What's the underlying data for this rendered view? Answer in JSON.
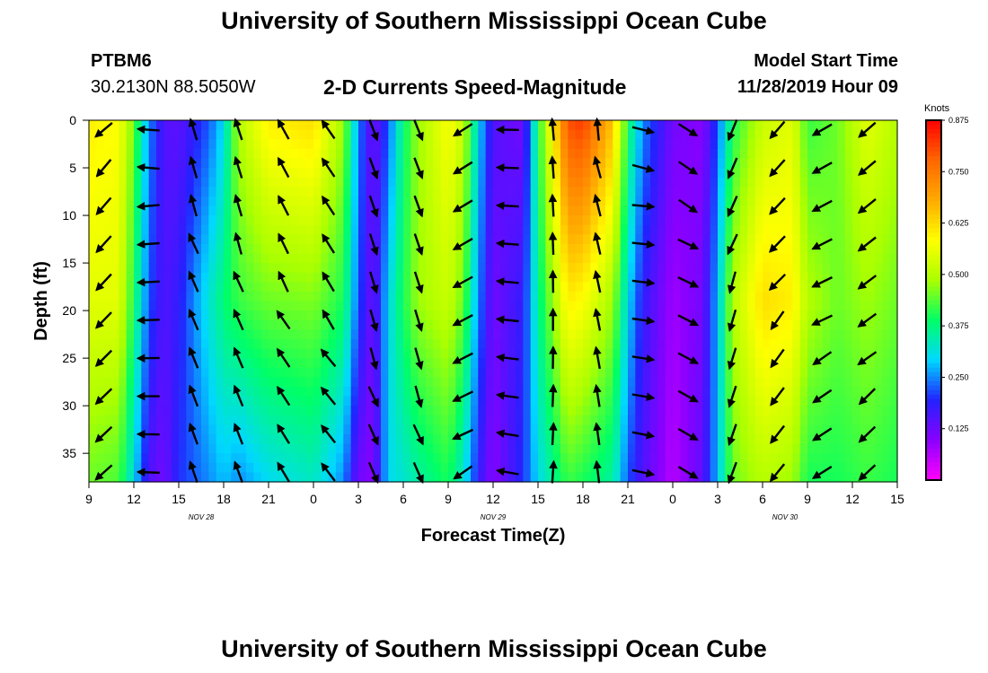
{
  "page": {
    "title_top": "University of Southern Mississippi Ocean Cube",
    "title_bottom": "University of Southern Mississippi Ocean Cube",
    "station": "PTBM6",
    "coordinates": "30.2130N 88.5050W",
    "model_label": "Model Start Time",
    "model_time": "11/28/2019 Hour 09"
  },
  "chart_data": {
    "type": "heatmap",
    "title": "2-D Currents Speed-Magnitude",
    "xlabel": "Forecast Time(Z)",
    "ylabel": "Depth (ft)",
    "x_range_hours": [
      0,
      54
    ],
    "y_range_ft": [
      0,
      38
    ],
    "x_tick_labels": [
      "9",
      "12",
      "15",
      "18",
      "21",
      "0",
      "3",
      "6",
      "9",
      "12",
      "15",
      "18",
      "21",
      "0",
      "3",
      "6",
      "9",
      "12",
      "15"
    ],
    "y_tick_labels": [
      "0",
      "5",
      "10",
      "15",
      "20",
      "25",
      "30",
      "35"
    ],
    "date_labels": [
      {
        "text": "NOV 28",
        "at_hour": 7.5
      },
      {
        "text": "NOV 29",
        "at_hour": 27
      },
      {
        "text": "NOV 30",
        "at_hour": 46.5
      }
    ],
    "colorbar": {
      "unit": "Knots",
      "ticks": [
        "0.875",
        "0.750",
        "0.625",
        "0.500",
        "0.375",
        "0.250",
        "0.125"
      ],
      "range": [
        0.0,
        0.875
      ],
      "colors": [
        "#ff00ff",
        "#8a00ff",
        "#2222ff",
        "#00d8ff",
        "#00ff66",
        "#aaff00",
        "#ffff00",
        "#ffaa00",
        "#ff6600",
        "#ff0000"
      ]
    },
    "columns": [
      {
        "h": 0,
        "top": 0.6,
        "mid": 0.55,
        "bot": 0.45,
        "dir": 225
      },
      {
        "h": 2,
        "top": 0.58,
        "mid": 0.55,
        "bot": 0.43,
        "dir": 225
      },
      {
        "h": 3,
        "top": 0.45,
        "mid": 0.4,
        "bot": 0.3,
        "dir": 260
      },
      {
        "h": 4,
        "top": 0.25,
        "mid": 0.22,
        "bot": 0.15,
        "dir": 270
      },
      {
        "h": 5,
        "top": 0.15,
        "mid": 0.15,
        "bot": 0.12,
        "dir": 290
      },
      {
        "h": 6,
        "top": 0.14,
        "mid": 0.18,
        "bot": 0.2,
        "dir": 340
      },
      {
        "h": 8,
        "top": 0.22,
        "mid": 0.32,
        "bot": 0.25,
        "dir": 0
      },
      {
        "h": 9,
        "top": 0.3,
        "mid": 0.38,
        "bot": 0.28,
        "dir": 355
      },
      {
        "h": 10,
        "top": 0.5,
        "mid": 0.42,
        "bot": 0.25,
        "dir": 340
      },
      {
        "h": 12,
        "top": 0.6,
        "mid": 0.45,
        "bot": 0.3,
        "dir": 330
      },
      {
        "h": 15,
        "top": 0.62,
        "mid": 0.46,
        "bot": 0.33,
        "dir": 325
      },
      {
        "h": 17,
        "top": 0.48,
        "mid": 0.4,
        "bot": 0.25,
        "dir": 0
      },
      {
        "h": 18,
        "top": 0.25,
        "mid": 0.22,
        "bot": 0.12,
        "dir": 10
      },
      {
        "h": 19,
        "top": 0.12,
        "mid": 0.12,
        "bot": 0.1,
        "dir": 160
      },
      {
        "h": 20,
        "top": 0.22,
        "mid": 0.3,
        "bot": 0.3,
        "dir": 170
      },
      {
        "h": 21,
        "top": 0.38,
        "mid": 0.4,
        "bot": 0.32,
        "dir": 150
      },
      {
        "h": 22,
        "top": 0.48,
        "mid": 0.48,
        "bot": 0.35,
        "dir": 160
      },
      {
        "h": 24,
        "top": 0.58,
        "mid": 0.52,
        "bot": 0.4,
        "dir": 210
      },
      {
        "h": 25,
        "top": 0.52,
        "mid": 0.45,
        "bot": 0.32,
        "dir": 240
      },
      {
        "h": 26,
        "top": 0.3,
        "mid": 0.25,
        "bot": 0.18,
        "dir": 265
      },
      {
        "h": 27,
        "top": 0.15,
        "mid": 0.12,
        "bot": 0.1,
        "dir": 275
      },
      {
        "h": 29,
        "top": 0.12,
        "mid": 0.18,
        "bot": 0.2,
        "dir": 0
      },
      {
        "h": 30,
        "top": 0.4,
        "mid": 0.36,
        "bot": 0.3,
        "dir": 0
      },
      {
        "h": 32,
        "top": 0.8,
        "mid": 0.6,
        "bot": 0.42,
        "dir": 340
      },
      {
        "h": 33,
        "top": 0.82,
        "mid": 0.58,
        "bot": 0.4,
        "dir": 350
      },
      {
        "h": 35,
        "top": 0.65,
        "mid": 0.48,
        "bot": 0.35,
        "dir": 10
      },
      {
        "h": 36,
        "top": 0.4,
        "mid": 0.3,
        "bot": 0.22,
        "dir": 50
      },
      {
        "h": 37,
        "top": 0.25,
        "mid": 0.18,
        "bot": 0.15,
        "dir": 100
      },
      {
        "h": 39,
        "top": 0.12,
        "mid": 0.08,
        "bot": 0.06,
        "dir": 120
      },
      {
        "h": 41,
        "top": 0.1,
        "mid": 0.12,
        "bot": 0.14,
        "dir": 150
      },
      {
        "h": 42,
        "top": 0.22,
        "mid": 0.28,
        "bot": 0.28,
        "dir": 180
      },
      {
        "h": 43,
        "top": 0.4,
        "mid": 0.5,
        "bot": 0.45,
        "dir": 200
      },
      {
        "h": 45,
        "top": 0.52,
        "mid": 0.62,
        "bot": 0.5,
        "dir": 220
      },
      {
        "h": 47,
        "top": 0.55,
        "mid": 0.6,
        "bot": 0.48,
        "dir": 230
      },
      {
        "h": 48,
        "top": 0.42,
        "mid": 0.5,
        "bot": 0.4,
        "dir": 240
      },
      {
        "h": 50,
        "top": 0.45,
        "mid": 0.45,
        "bot": 0.4,
        "dir": 225
      },
      {
        "h": 52,
        "top": 0.55,
        "mid": 0.48,
        "bot": 0.42,
        "dir": 230
      },
      {
        "h": 54,
        "top": 0.5,
        "mid": 0.45,
        "bot": 0.4,
        "dir": 225
      }
    ]
  }
}
